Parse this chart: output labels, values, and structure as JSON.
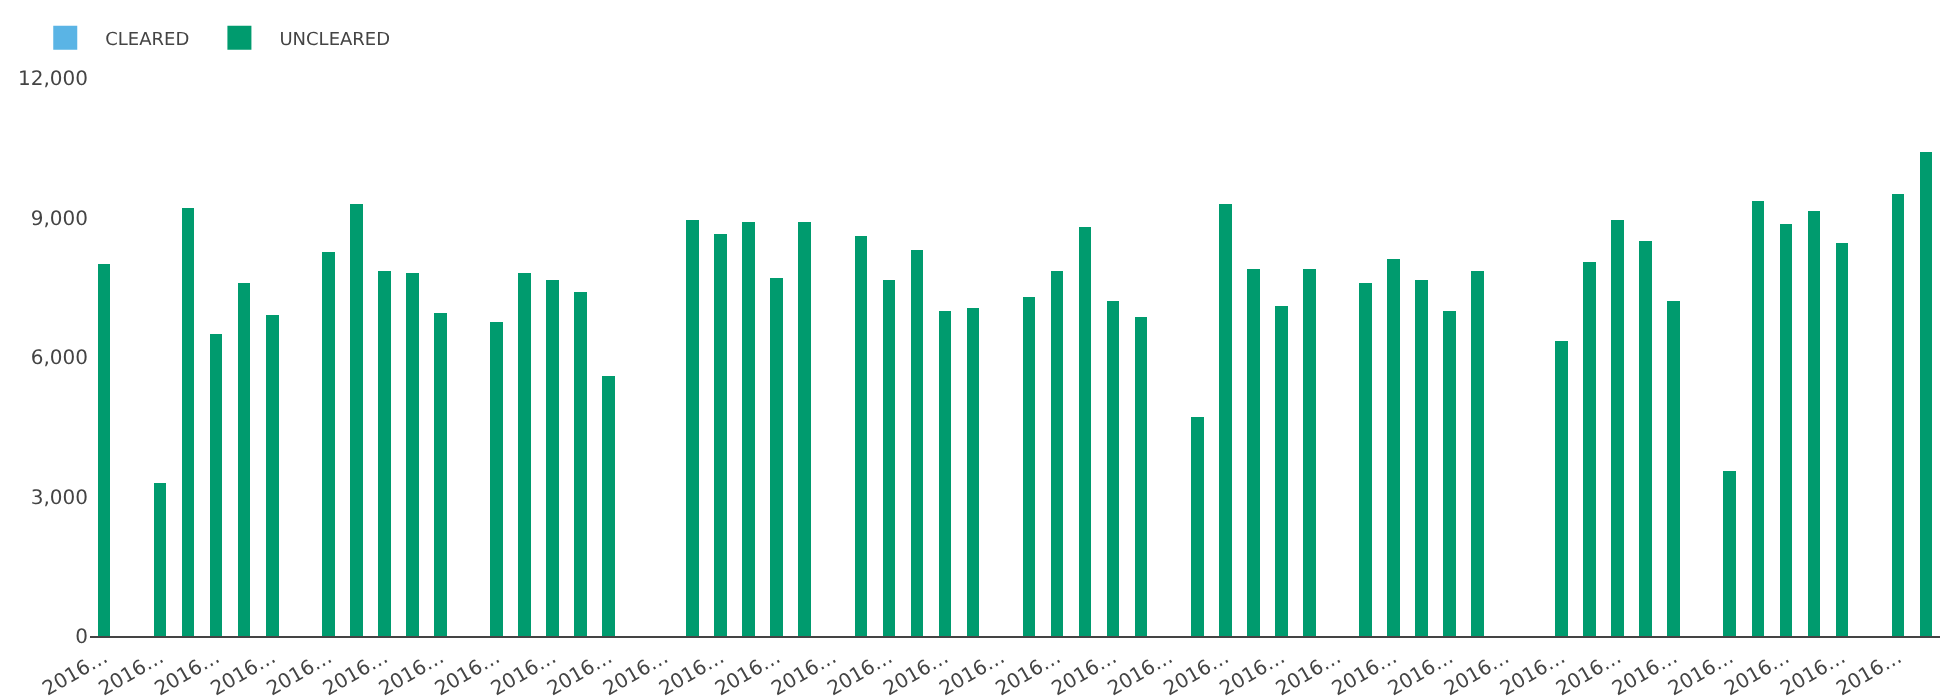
{
  "chart_data": {
    "type": "bar",
    "stacked": true,
    "categories": [
      "2016…",
      null,
      "2016…",
      null,
      "2016…",
      null,
      "2016…",
      null,
      "2016…",
      null,
      "2016…",
      null,
      "2016…",
      null,
      "2016…",
      null,
      "2016…",
      null,
      "2016…",
      null,
      "2016…",
      null,
      "2016…",
      null,
      "2016…",
      null,
      "2016…",
      null,
      "2016…",
      null,
      "2016…",
      null,
      "2016…",
      null,
      "2016…",
      null,
      "2016…",
      null,
      "2016…",
      null,
      "2016…",
      null,
      "2016…",
      null,
      "2016…",
      null,
      "2016…",
      null,
      "2016…",
      null,
      "2016…",
      null,
      "2016…",
      null,
      "2016…",
      null,
      "2016…",
      null,
      "2016…",
      null,
      "2016…",
      null,
      "2016…",
      null,
      "2016…",
      null
    ],
    "series": [
      {
        "name": "CLEARED",
        "color": "#5ab4e5",
        "values": [
          null,
          null,
          null,
          null,
          null,
          null,
          null,
          null,
          null,
          null,
          null,
          null,
          null,
          null,
          null,
          null,
          null,
          null,
          null,
          null,
          null,
          null,
          null,
          null,
          null,
          null,
          null,
          null,
          null,
          null,
          null,
          null,
          null,
          null,
          null,
          null,
          null,
          null,
          null,
          null,
          null,
          null,
          null,
          null,
          null,
          null,
          null,
          null,
          null,
          null,
          null,
          null,
          null,
          null,
          null,
          null,
          null,
          null,
          null,
          null,
          null,
          null,
          null,
          null,
          null,
          null
        ]
      },
      {
        "name": "UNCLEARED",
        "color": "#009b6e",
        "values": [
          8000,
          null,
          3300,
          9200,
          6500,
          7600,
          6900,
          null,
          8250,
          9300,
          7850,
          7800,
          6950,
          null,
          6750,
          7800,
          7650,
          7400,
          5600,
          null,
          null,
          8950,
          8650,
          8900,
          7700,
          8900,
          null,
          8600,
          7650,
          8300,
          7000,
          7050,
          null,
          7300,
          7850,
          8800,
          7200,
          6850,
          null,
          4700,
          9300,
          7900,
          7100,
          7900,
          null,
          7600,
          8100,
          7650,
          7000,
          7850,
          null,
          null,
          6350,
          8050,
          8950,
          8500,
          7200,
          null,
          3550,
          9350,
          8850,
          9150,
          8450,
          null,
          9500,
          10400
        ]
      }
    ],
    "ylim": [
      0,
      12000
    ],
    "yticks": [
      0,
      {
        "value": 3000,
        "label": "3,000"
      },
      {
        "value": 6000,
        "label": "6,000"
      },
      {
        "value": 9000,
        "label": "9,000"
      },
      {
        "value": 12000,
        "label": "12,000"
      }
    ],
    "grid": false,
    "legend": "top left"
  }
}
